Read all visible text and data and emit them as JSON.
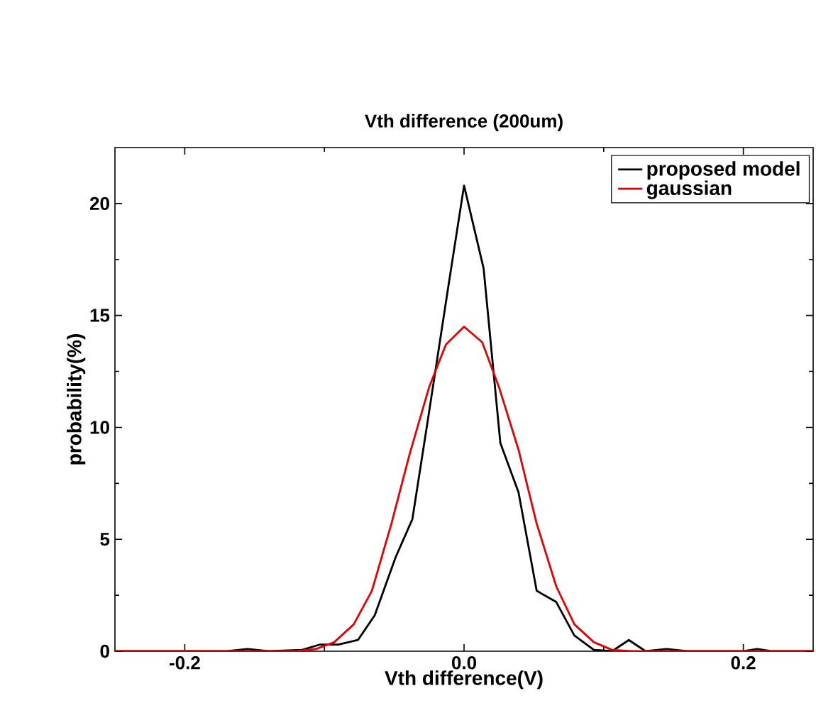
{
  "chart_data": {
    "type": "line",
    "title": "Vth difference (200um)",
    "xlabel": "Vth difference(V)",
    "ylabel": "probability(%)",
    "xlim": [
      -0.25,
      0.25
    ],
    "xticks": [
      -0.2,
      {
        "value": 0.0,
        "label": "0.0"
      },
      0.2
    ],
    "ylim": [
      0,
      22.5
    ],
    "yticks": [
      0,
      5,
      10,
      15,
      20
    ],
    "legend": "top right",
    "line_style": "solid",
    "marker": "none",
    "grid": false,
    "series": [
      {
        "name": "proposed model",
        "color": "#000000",
        "x": [
          -0.25,
          -0.17,
          -0.155,
          -0.14,
          -0.116,
          -0.103,
          -0.09,
          -0.076,
          -0.064,
          -0.049,
          -0.037,
          -0.026,
          -0.011,
          0.0,
          0.014,
          0.026,
          0.039,
          0.052,
          0.066,
          0.079,
          0.093,
          0.106,
          0.118,
          0.13,
          0.145,
          0.16,
          0.2,
          0.21,
          0.22,
          0.25
        ],
        "values": [
          0,
          0,
          0.1,
          0,
          0.06,
          0.3,
          0.3,
          0.5,
          1.6,
          4.2,
          5.9,
          10.3,
          16.4,
          20.8,
          17.1,
          9.3,
          7.1,
          2.7,
          2.2,
          0.7,
          0.06,
          0,
          0.5,
          0,
          0.1,
          0,
          0,
          0.1,
          0,
          0
        ]
      },
      {
        "name": "gaussian",
        "color": "#e00000",
        "x": [
          -0.25,
          -0.12,
          -0.106,
          -0.093,
          -0.079,
          -0.066,
          -0.052,
          -0.039,
          -0.025,
          -0.013,
          0.0,
          0.013,
          0.025,
          0.039,
          0.052,
          0.066,
          0.079,
          0.093,
          0.106,
          0.12,
          0.25
        ],
        "values": [
          0,
          0,
          0.1,
          0.4,
          1.2,
          2.7,
          5.7,
          8.8,
          11.8,
          13.7,
          14.5,
          13.8,
          11.8,
          9.0,
          5.7,
          2.9,
          1.2,
          0.4,
          0.06,
          0,
          0
        ]
      }
    ]
  }
}
